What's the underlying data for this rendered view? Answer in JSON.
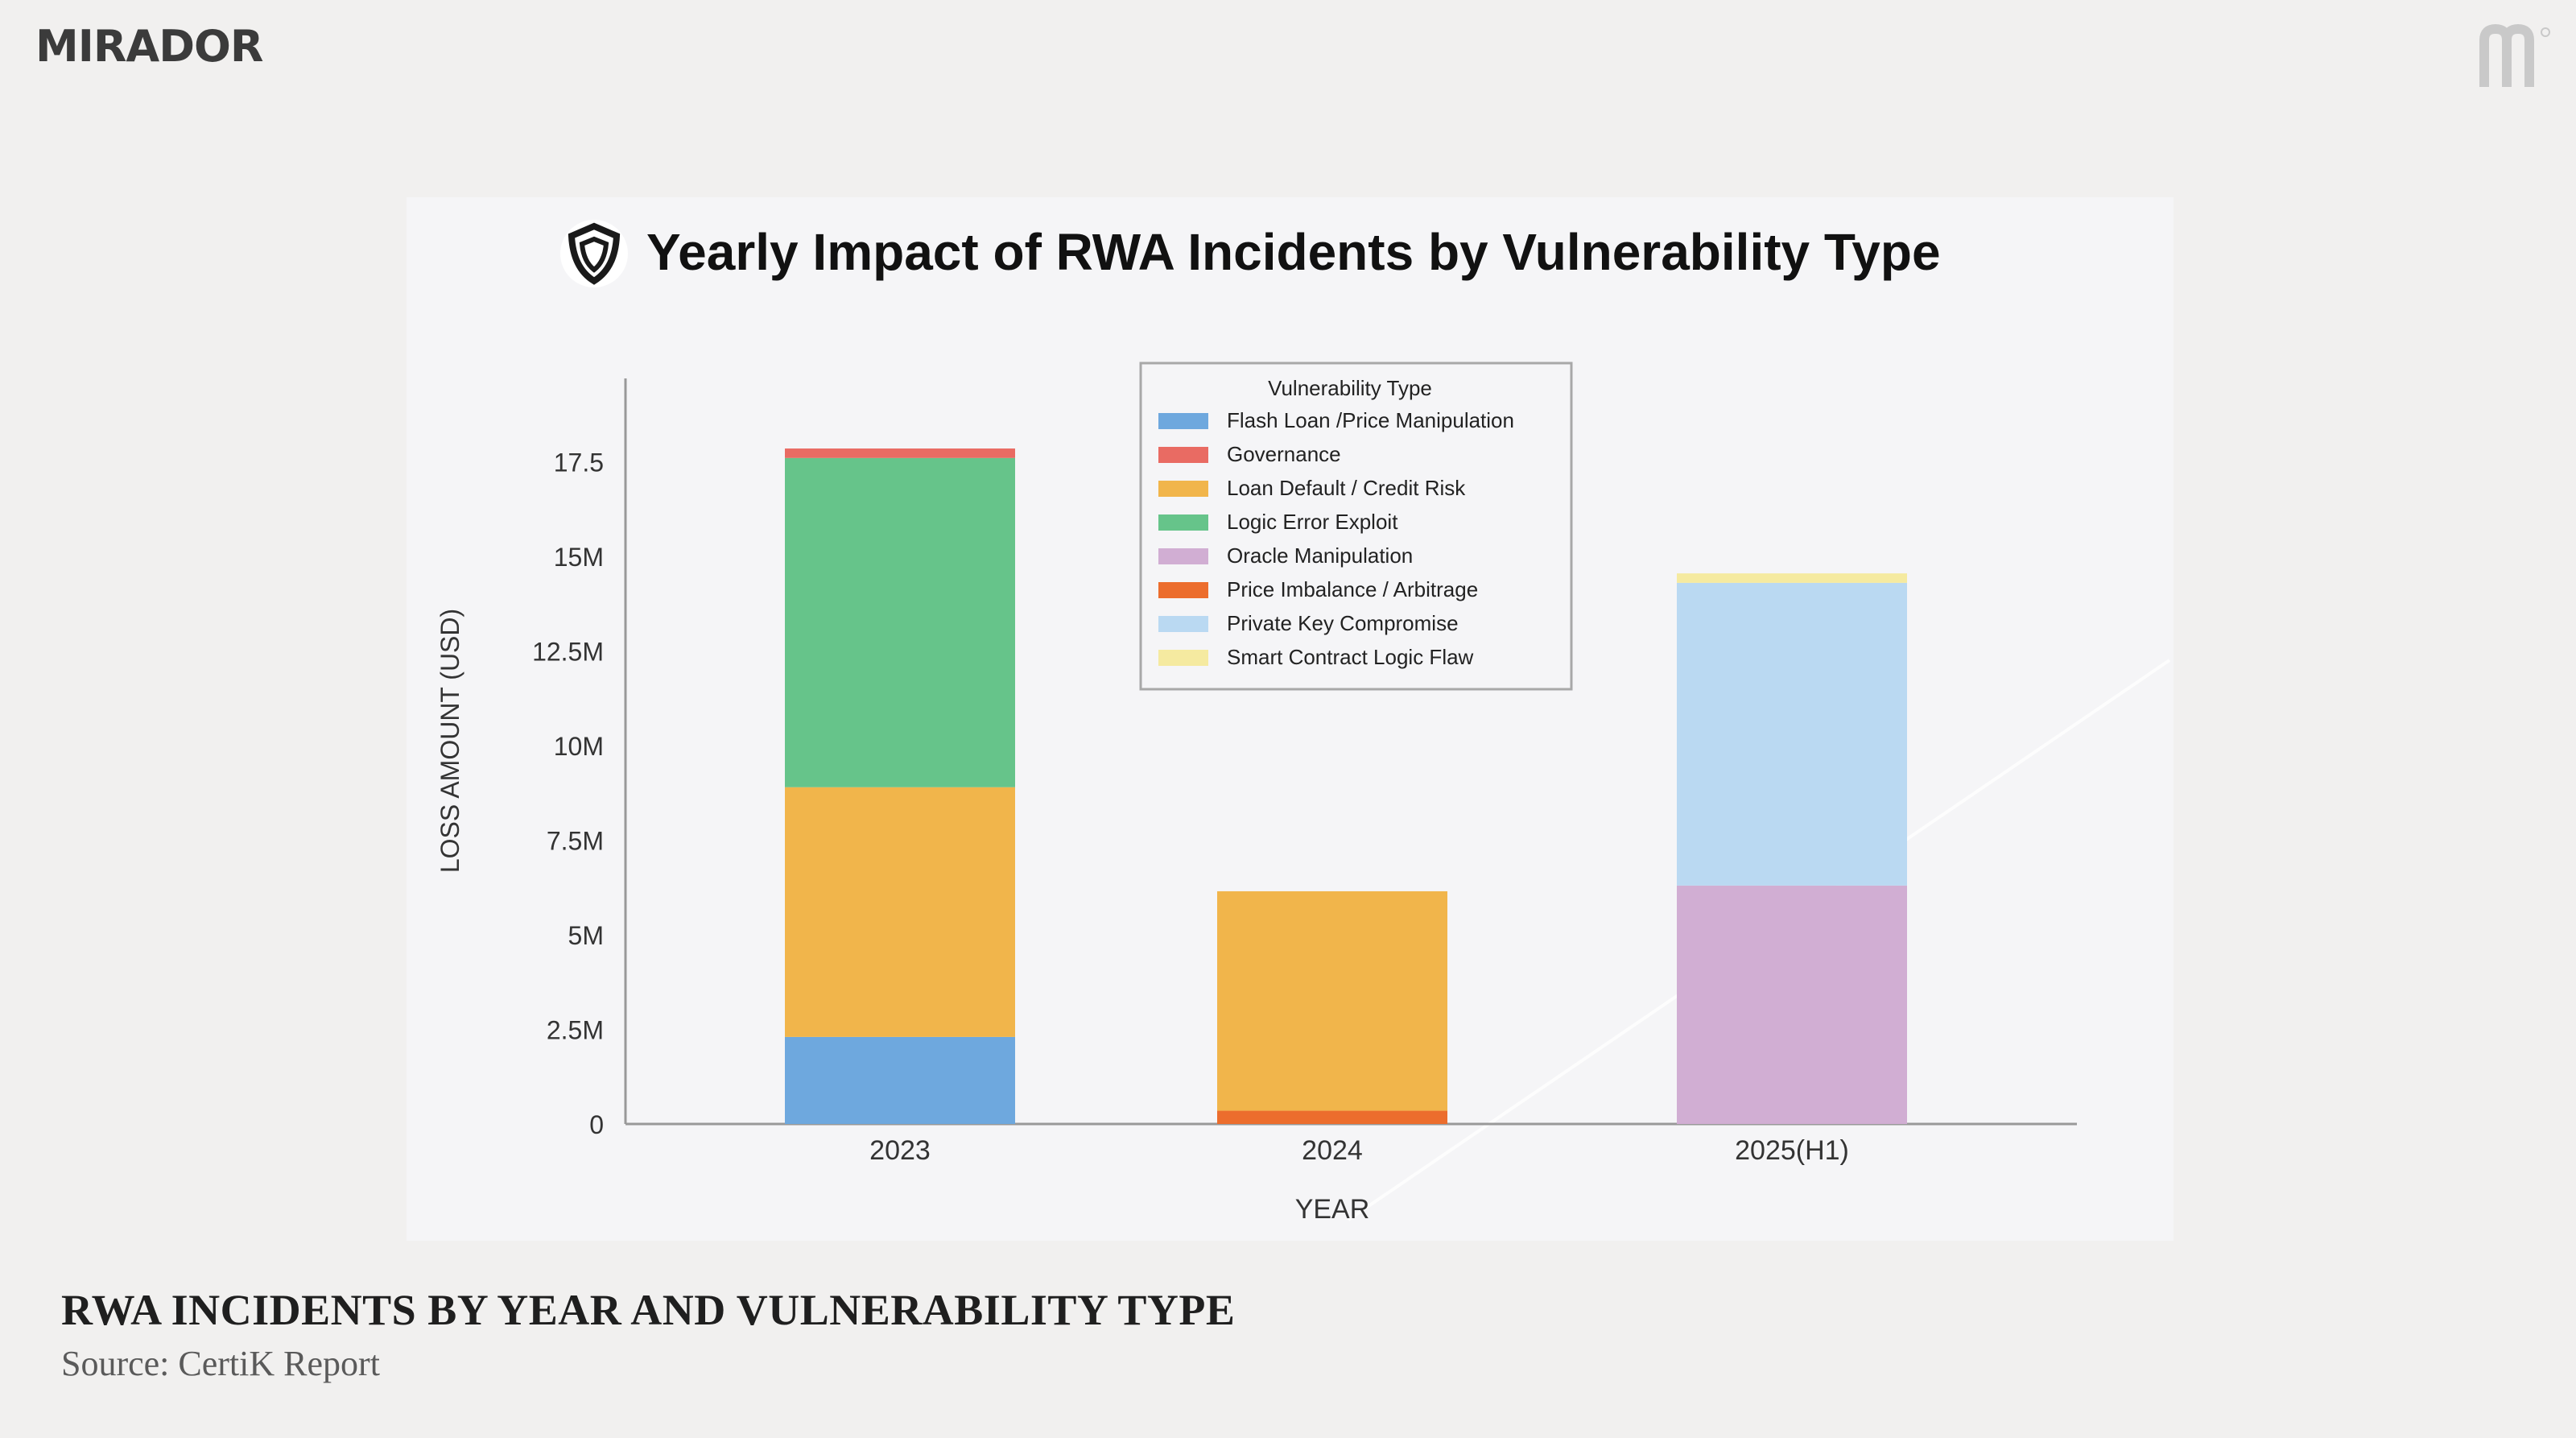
{
  "brand": {
    "name": "MIRADOR",
    "mark_icon": "mirador-m-logo-icon"
  },
  "caption": {
    "title": "RWA INCIDENTS BY YEAR AND VULNERABILITY TYPE",
    "source": "Source: CertiK Report"
  },
  "chart_data": {
    "type": "bar",
    "stacked": true,
    "title": "Yearly Impact of RWA Incidents by Vulnerability Type",
    "title_icon": "certik-shield-icon",
    "xlabel": "YEAR",
    "ylabel": "LOSS AMOUNT (USD)",
    "ylim": [
      0,
      19.5
    ],
    "yticks": [
      0,
      2.5,
      5,
      7.5,
      10,
      12.5,
      15,
      17.5
    ],
    "ytick_labels": [
      "0",
      "2.5M",
      "5M",
      "7.5M",
      "10M",
      "12.5M",
      "15M",
      "17.5"
    ],
    "categories": [
      "2023",
      "2024",
      "2025(H1)"
    ],
    "legend_title": "Vulnerability Type",
    "legend_position": "top-center",
    "series": [
      {
        "name": "Flash Loan /Price Manipulation",
        "color": "#6ea8de",
        "values": [
          2.3,
          0,
          0
        ]
      },
      {
        "name": "Governance",
        "color": "#e96b63",
        "values": [
          0.25,
          0,
          0
        ]
      },
      {
        "name": "Loan Default / Credit Risk",
        "color": "#f1b54b",
        "values": [
          6.6,
          5.8,
          0
        ]
      },
      {
        "name": "Logic Error Exploit",
        "color": "#66c48a",
        "values": [
          8.7,
          0,
          0
        ]
      },
      {
        "name": "Oracle Manipulation",
        "color": "#d1aed3",
        "values": [
          0,
          0,
          6.3
        ]
      },
      {
        "name": "Price Imbalance / Arbitrage",
        "color": "#ec6d2d",
        "values": [
          0,
          0.35,
          0
        ]
      },
      {
        "name": "Private Key Compromise",
        "color": "#bad9f2",
        "values": [
          0,
          0,
          8.0
        ]
      },
      {
        "name": "Smart Contract Logic Flaw",
        "color": "#f5eaa0",
        "values": [
          0,
          0,
          0.25
        ]
      }
    ],
    "stack_order": [
      "Flash Loan /Price Manipulation",
      "Price Imbalance / Arbitrage",
      "Loan Default / Credit Risk",
      "Logic Error Exploit",
      "Oracle Manipulation",
      "Private Key Compromise",
      "Governance",
      "Smart Contract Logic Flaw"
    ],
    "legend_labels": [
      "Flash Loan /Price Manipulation",
      "Governance",
      "Loan Default / Credit Risk",
      "Logic Error Exploit",
      "Oracle Manipulation",
      "Price Imbalance / Arbitrage",
      "Private Key Compromise",
      "Smart Contract Logic Flaw"
    ]
  }
}
